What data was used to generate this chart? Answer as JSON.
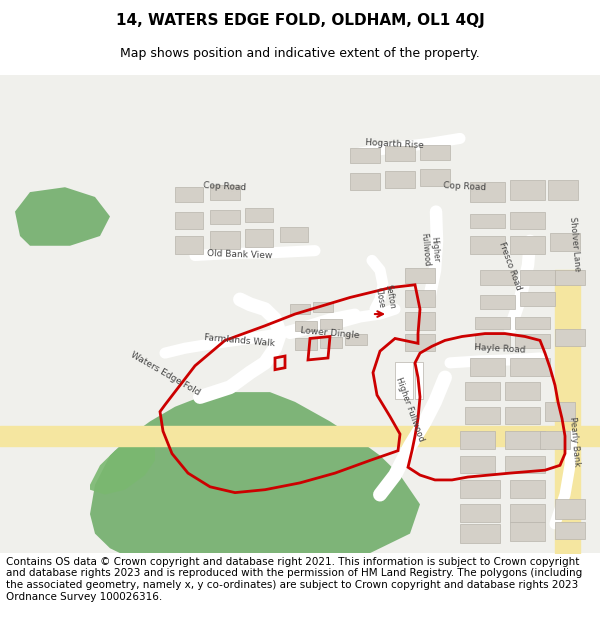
{
  "title": "14, WATERS EDGE FOLD, OLDHAM, OL1 4QJ",
  "subtitle": "Map shows position and indicative extent of the property.",
  "footer": "Contains OS data © Crown copyright and database right 2021. This information is subject to Crown copyright and database rights 2023 and is reproduced with the permission of HM Land Registry. The polygons (including the associated geometry, namely x, y co-ordinates) are subject to Crown copyright and database rights 2023 Ordnance Survey 100026316.",
  "map_bg": "#f0f0ec",
  "road_color": "#ffffff",
  "road_yellow": "#f5e6a0",
  "green_area_color": "#6aaa64",
  "building_color": "#d4d0c8",
  "building_outline": "#b8b4ac",
  "plot_outline_color": "#cc0000",
  "plot_linewidth": 2.0,
  "title_fontsize": 11,
  "subtitle_fontsize": 9,
  "footer_fontsize": 7.5,
  "figsize": [
    6.0,
    6.25
  ],
  "dpi": 100
}
